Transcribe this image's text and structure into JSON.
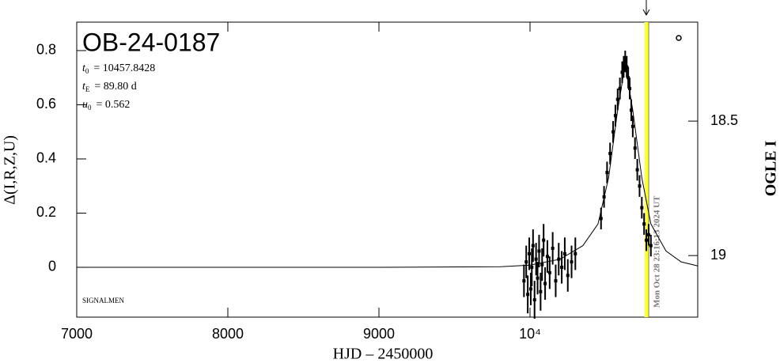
{
  "chart_data": {
    "type": "errorbar",
    "title": "OB-24-0187",
    "xlabel": "HJD – 2450000",
    "ylabel": "Δ(I,R,Z,U)",
    "y2label": "OGLE I",
    "parameters": [
      {
        "symbol": "t",
        "sub": "0",
        "text": "= 10457.8428"
      },
      {
        "symbol": "t",
        "sub": "E",
        "text": "= 89.80 d"
      },
      {
        "symbol": "u",
        "sub": "0",
        "text": "= 0.562"
      }
    ],
    "credit": "SIGNALMEN",
    "timestamp": "Mon Oct 28 23:16:13 2024 UT",
    "now_x": 10770,
    "now_color": "#ffff33",
    "xlim": [
      7000,
      11110
    ],
    "xticks": [
      7000,
      8000,
      9000,
      {
        "value": 10000,
        "label": "10⁴"
      }
    ],
    "ylim": [
      -0.184,
      0.905
    ],
    "yticks": [
      0,
      0.2,
      0.4,
      0.6,
      0.8
    ],
    "y2lim": [
      19.229,
      18.132
    ],
    "y2ticks": [
      18.5,
      19
    ],
    "series": [
      {
        "type": "line",
        "color": "#000000",
        "x": [
          7000,
          9000,
          9800,
          10000,
          10200,
          10350,
          10450,
          10520,
          10580,
          10630,
          10680,
          10740,
          10800,
          10900,
          11000,
          11110
        ],
        "values": [
          0,
          0,
          0.002,
          0.008,
          0.03,
          0.08,
          0.16,
          0.33,
          0.58,
          0.75,
          0.58,
          0.33,
          0.16,
          0.06,
          0.02,
          0.005
        ]
      },
      {
        "type": "errorbar",
        "color": "#000000",
        "x": [
          9960,
          9975,
          9985,
          9995,
          10005,
          10012,
          10020,
          10030,
          10040,
          10050,
          10060,
          10070,
          10080,
          10090,
          10100,
          10115,
          10130,
          10150,
          10170,
          10190,
          10210,
          10230,
          10250,
          10275,
          10300,
          10470,
          10490,
          10510,
          10530,
          10550,
          10565,
          10580,
          10595,
          10610,
          10620,
          10630,
          10640,
          10650,
          10660,
          10670,
          10680,
          10695,
          10710,
          10725,
          10740,
          10755,
          10770,
          10785,
          10800
        ],
        "values": [
          -0.05,
          0.02,
          -0.1,
          0.05,
          -0.08,
          0,
          0.08,
          -0.12,
          0.03,
          -0.04,
          0.06,
          -0.09,
          0.01,
          0.1,
          -0.06,
          0.04,
          -0.02,
          0.07,
          -0.05,
          0.03,
          0,
          0.05,
          -0.03,
          0.02,
          0.05,
          0.18,
          0.26,
          0.35,
          0.42,
          0.5,
          0.56,
          0.62,
          0.66,
          0.72,
          0.74,
          0.76,
          0.74,
          0.7,
          0.66,
          0.58,
          0.52,
          0.44,
          0.36,
          0.3,
          0.22,
          0.16,
          0.1,
          0.12,
          0.08
        ],
        "errors": [
          0.06,
          0.06,
          0.07,
          0.06,
          0.06,
          0.07,
          0.06,
          0.07,
          0.06,
          0.06,
          0.06,
          0.07,
          0.06,
          0.06,
          0.06,
          0.06,
          0.06,
          0.06,
          0.06,
          0.06,
          0.06,
          0.06,
          0.06,
          0.06,
          0.06,
          0.04,
          0.04,
          0.04,
          0.04,
          0.04,
          0.04,
          0.04,
          0.04,
          0.04,
          0.04,
          0.04,
          0.04,
          0.04,
          0.04,
          0.04,
          0.04,
          0.04,
          0.04,
          0.04,
          0.04,
          0.04,
          0.04,
          0.04,
          0.04
        ]
      }
    ]
  }
}
